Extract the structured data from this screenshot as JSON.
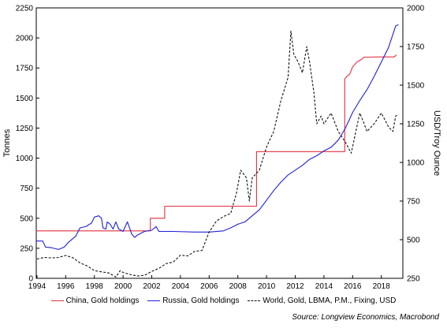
{
  "chart_data": {
    "type": "line",
    "title": "",
    "xlabel": "",
    "ylabel": "Tonnes",
    "ylabel_right": "USD/Troy Ounce",
    "xlim": [
      1993.95,
      2019.5
    ],
    "ylim": [
      0,
      2250
    ],
    "ylim_right": [
      250,
      2000
    ],
    "x_ticks": [
      1994,
      1996,
      1998,
      2000,
      2002,
      2004,
      2006,
      2008,
      2010,
      2012,
      2014,
      2016,
      2018
    ],
    "y_ticks": [
      0,
      250,
      500,
      750,
      1000,
      1250,
      1500,
      1750,
      2000,
      2250
    ],
    "y_ticks_right": [
      250,
      500,
      750,
      1000,
      1250,
      1500,
      1750,
      2000
    ],
    "grid": false,
    "legend_position": "bottom",
    "source": "Source: Longview Economics, Macrobond",
    "series": [
      {
        "name": "China, Gold holdings",
        "color": "#e0303e",
        "axis": "left",
        "style": "solid",
        "points": [
          [
            1993.95,
            395
          ],
          [
            2001.9,
            395
          ],
          [
            2001.9,
            500
          ],
          [
            2002.9,
            500
          ],
          [
            2002.9,
            600
          ],
          [
            2003.0,
            600
          ],
          [
            2003.0,
            600
          ],
          [
            2009.3,
            600
          ],
          [
            2009.3,
            1054
          ],
          [
            2015.45,
            1054
          ],
          [
            2015.45,
            1658
          ],
          [
            2015.6,
            1680
          ],
          [
            2015.8,
            1700
          ],
          [
            2016.0,
            1760
          ],
          [
            2016.3,
            1800
          ],
          [
            2016.6,
            1820
          ],
          [
            2016.8,
            1840
          ],
          [
            2018.0,
            1842
          ],
          [
            2018.9,
            1842
          ],
          [
            2019.05,
            1860
          ]
        ]
      },
      {
        "name": "Russia, Gold holdings",
        "color": "#2020d8",
        "axis": "left",
        "style": "solid",
        "points": [
          [
            1993.95,
            310
          ],
          [
            1994.4,
            310
          ],
          [
            1994.6,
            260
          ],
          [
            1995.0,
            255
          ],
          [
            1995.5,
            240
          ],
          [
            1995.9,
            260
          ],
          [
            1996.2,
            300
          ],
          [
            1996.7,
            350
          ],
          [
            1997.0,
            420
          ],
          [
            1997.4,
            430
          ],
          [
            1997.8,
            460
          ],
          [
            1998.0,
            510
          ],
          [
            1998.3,
            520
          ],
          [
            1998.5,
            500
          ],
          [
            1998.6,
            420
          ],
          [
            1998.8,
            410
          ],
          [
            1998.9,
            470
          ],
          [
            1999.1,
            450
          ],
          [
            1999.3,
            410
          ],
          [
            1999.5,
            470
          ],
          [
            1999.7,
            410
          ],
          [
            2000.0,
            390
          ],
          [
            2000.3,
            470
          ],
          [
            2000.6,
            370
          ],
          [
            2000.8,
            340
          ],
          [
            2001.0,
            360
          ],
          [
            2001.5,
            390
          ],
          [
            2002.0,
            400
          ],
          [
            2002.3,
            430
          ],
          [
            2002.5,
            390
          ],
          [
            2003.5,
            390
          ],
          [
            2005.0,
            385
          ],
          [
            2006.0,
            385
          ],
          [
            2007.0,
            395
          ],
          [
            2007.5,
            420
          ],
          [
            2008.0,
            450
          ],
          [
            2008.5,
            470
          ],
          [
            2009.0,
            520
          ],
          [
            2009.5,
            570
          ],
          [
            2010.0,
            650
          ],
          [
            2010.5,
            730
          ],
          [
            2011.0,
            800
          ],
          [
            2011.5,
            860
          ],
          [
            2012.0,
            900
          ],
          [
            2012.5,
            940
          ],
          [
            2013.0,
            990
          ],
          [
            2013.5,
            1020
          ],
          [
            2014.0,
            1060
          ],
          [
            2014.5,
            1090
          ],
          [
            2015.0,
            1150
          ],
          [
            2015.5,
            1250
          ],
          [
            2016.0,
            1380
          ],
          [
            2016.5,
            1480
          ],
          [
            2017.0,
            1570
          ],
          [
            2017.5,
            1680
          ],
          [
            2018.0,
            1800
          ],
          [
            2018.5,
            1920
          ],
          [
            2019.0,
            2100
          ],
          [
            2019.2,
            2110
          ]
        ]
      },
      {
        "name": "World, Gold, LBMA, P.M., Fixing, USD",
        "color": "#111111",
        "axis": "right",
        "style": "dashed",
        "points": [
          [
            1994.0,
            375
          ],
          [
            1994.5,
            385
          ],
          [
            1995.0,
            382
          ],
          [
            1995.5,
            385
          ],
          [
            1996.0,
            398
          ],
          [
            1996.5,
            383
          ],
          [
            1997.0,
            350
          ],
          [
            1997.5,
            330
          ],
          [
            1998.0,
            300
          ],
          [
            1998.5,
            292
          ],
          [
            1999.0,
            285
          ],
          [
            1999.5,
            258
          ],
          [
            1999.8,
            300
          ],
          [
            2000.0,
            288
          ],
          [
            2000.5,
            275
          ],
          [
            2001.0,
            265
          ],
          [
            2001.5,
            270
          ],
          [
            2002.0,
            295
          ],
          [
            2002.5,
            315
          ],
          [
            2003.0,
            345
          ],
          [
            2003.5,
            355
          ],
          [
            2004.0,
            400
          ],
          [
            2004.5,
            395
          ],
          [
            2005.0,
            425
          ],
          [
            2005.5,
            430
          ],
          [
            2006.0,
            550
          ],
          [
            2006.5,
            620
          ],
          [
            2007.0,
            650
          ],
          [
            2007.5,
            670
          ],
          [
            2007.9,
            800
          ],
          [
            2008.2,
            950
          ],
          [
            2008.6,
            900
          ],
          [
            2008.8,
            750
          ],
          [
            2009.0,
            900
          ],
          [
            2009.5,
            950
          ],
          [
            2010.0,
            1100
          ],
          [
            2010.5,
            1200
          ],
          [
            2011.0,
            1400
          ],
          [
            2011.5,
            1550
          ],
          [
            2011.7,
            1850
          ],
          [
            2011.9,
            1700
          ],
          [
            2012.2,
            1650
          ],
          [
            2012.5,
            1580
          ],
          [
            2012.8,
            1750
          ],
          [
            2013.0,
            1650
          ],
          [
            2013.3,
            1450
          ],
          [
            2013.5,
            1250
          ],
          [
            2013.8,
            1300
          ],
          [
            2014.0,
            1250
          ],
          [
            2014.5,
            1320
          ],
          [
            2015.0,
            1200
          ],
          [
            2015.5,
            1130
          ],
          [
            2015.9,
            1060
          ],
          [
            2016.5,
            1320
          ],
          [
            2016.8,
            1250
          ],
          [
            2017.0,
            1200
          ],
          [
            2017.5,
            1250
          ],
          [
            2018.0,
            1320
          ],
          [
            2018.5,
            1230
          ],
          [
            2018.8,
            1200
          ],
          [
            2019.0,
            1300
          ],
          [
            2019.2,
            1310
          ]
        ]
      }
    ]
  }
}
